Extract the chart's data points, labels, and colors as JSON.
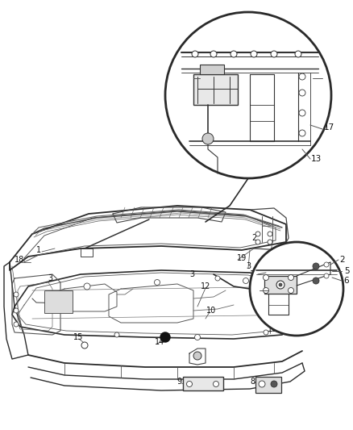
{
  "bg_color": "#ffffff",
  "line_color": "#2a2a2a",
  "fig_width": 4.38,
  "fig_height": 5.33,
  "dpi": 100,
  "image_b64": ""
}
